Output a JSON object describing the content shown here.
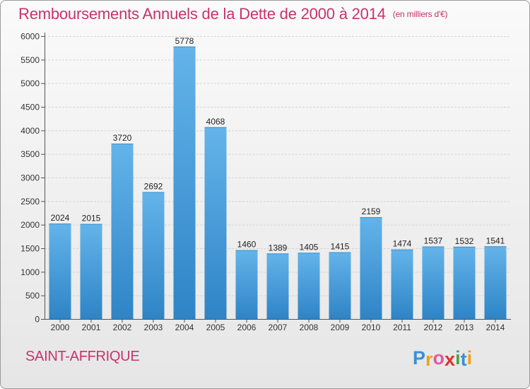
{
  "chart_data": {
    "type": "bar",
    "title": "Remboursements Annuels de la Dette de 2000 à 2014",
    "subtitle": "(en milliers d'€)",
    "categories": [
      "2000",
      "2001",
      "2002",
      "2003",
      "2004",
      "2005",
      "2006",
      "2007",
      "2008",
      "2009",
      "2010",
      "2011",
      "2012",
      "2013",
      "2014"
    ],
    "values": [
      2024,
      2015,
      3720,
      2692,
      5778,
      4068,
      1460,
      1389,
      1405,
      1415,
      2159,
      1474,
      1537,
      1532,
      1541
    ],
    "ylim": [
      0,
      6000
    ],
    "yticks": [
      "0",
      "500",
      "1000",
      "1500",
      "2000",
      "2500",
      "3000",
      "3500",
      "4000",
      "4500",
      "5000",
      "5500",
      "6000"
    ],
    "grid": true,
    "colors": {
      "bar_top": "#64b4ea",
      "bar_bottom": "#2e84c6",
      "accent": "#c8336a"
    }
  },
  "footer": {
    "city": "SAINT-AFFRIQUE",
    "logo_letters": [
      "P",
      "r",
      "o",
      "x",
      "i",
      "t",
      "i"
    ],
    "logo_colors": [
      "#3b8fd6",
      "#f0a020",
      "#e05aa0",
      "#e03030",
      "#4aa34a",
      "#3b8fd6",
      "#f0a020"
    ]
  }
}
